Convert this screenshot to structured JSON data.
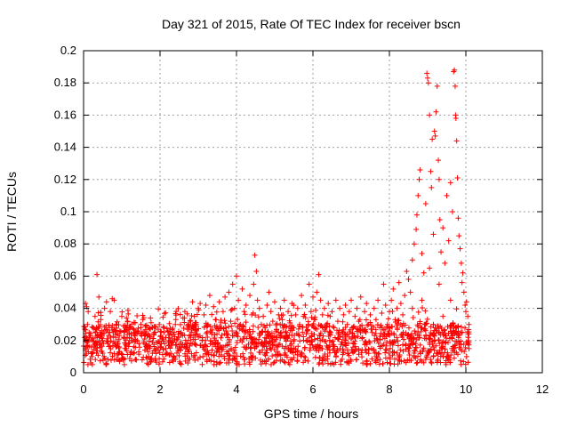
{
  "chart_data": {
    "type": "scatter",
    "title": "Day 321 of 2015, Rate Of TEC Index for receiver bscn",
    "xlabel": "GPS time / hours",
    "ylabel": "ROTI / TECUs",
    "xlim": [
      0,
      12
    ],
    "ylim": [
      0,
      0.2
    ],
    "xticks": [
      0,
      2,
      4,
      6,
      8,
      10,
      12
    ],
    "xtick_labels": [
      "0",
      "2",
      "4",
      "6",
      "8",
      "10",
      "12"
    ],
    "yticks": [
      0,
      0.02,
      0.04,
      0.06,
      0.08,
      0.1,
      0.12,
      0.14,
      0.16,
      0.18,
      0.2
    ],
    "ytick_labels": [
      "0",
      "0.02",
      "0.04",
      "0.06",
      "0.08",
      "0.1",
      "0.12",
      "0.14",
      "0.16",
      "0.18",
      "0.2"
    ],
    "grid": true,
    "marker": "plus",
    "color": "#ff0000",
    "series": [
      {
        "name": "ROTI",
        "points": [
          [
            0.05,
            0.043
          ],
          [
            0.08,
            0.041
          ],
          [
            0.12,
            0.038
          ],
          [
            0.1,
            0.03
          ],
          [
            0.15,
            0.022
          ],
          [
            0.05,
            0.015
          ],
          [
            0.2,
            0.012
          ],
          [
            0.25,
            0.028
          ],
          [
            0.3,
            0.035
          ],
          [
            0.35,
            0.061
          ],
          [
            0.4,
            0.047
          ],
          [
            0.45,
            0.033
          ],
          [
            0.5,
            0.02
          ],
          [
            0.55,
            0.04
          ],
          [
            0.6,
            0.044
          ],
          [
            0.65,
            0.025
          ],
          [
            0.7,
            0.038
          ],
          [
            0.75,
            0.046
          ],
          [
            0.8,
            0.045
          ],
          [
            0.85,
            0.03
          ],
          [
            0.9,
            0.018
          ],
          [
            0.95,
            0.026
          ],
          [
            1.0,
            0.035
          ],
          [
            1.05,
            0.022
          ],
          [
            1.1,
            0.015
          ],
          [
            1.15,
            0.032
          ],
          [
            1.2,
            0.028
          ],
          [
            1.25,
            0.02
          ],
          [
            1.3,
            0.012
          ],
          [
            1.35,
            0.031
          ],
          [
            1.4,
            0.024
          ],
          [
            1.45,
            0.018
          ],
          [
            1.5,
            0.03
          ],
          [
            1.55,
            0.033
          ],
          [
            1.6,
            0.021
          ],
          [
            1.65,
            0.016
          ],
          [
            1.7,
            0.028
          ],
          [
            1.75,
            0.034
          ],
          [
            1.8,
            0.019
          ],
          [
            1.85,
            0.025
          ],
          [
            1.9,
            0.012
          ],
          [
            1.95,
            0.027
          ],
          [
            2.0,
            0.018
          ],
          [
            2.05,
            0.022
          ],
          [
            2.1,
            0.028
          ],
          [
            2.15,
            0.015
          ],
          [
            2.2,
            0.026
          ],
          [
            2.25,
            0.011
          ],
          [
            2.3,
            0.024
          ],
          [
            2.35,
            0.019
          ],
          [
            2.4,
            0.03
          ],
          [
            2.45,
            0.021
          ],
          [
            2.5,
            0.016
          ],
          [
            2.55,
            0.025
          ],
          [
            2.6,
            0.034
          ],
          [
            2.65,
            0.038
          ],
          [
            2.7,
            0.018
          ],
          [
            2.75,
            0.03
          ],
          [
            2.8,
            0.022
          ],
          [
            2.85,
            0.044
          ],
          [
            2.9,
            0.035
          ],
          [
            2.95,
            0.026
          ],
          [
            3.0,
            0.04
          ],
          [
            3.05,
            0.043
          ],
          [
            3.1,
            0.02
          ],
          [
            3.15,
            0.036
          ],
          [
            3.2,
            0.042
          ],
          [
            3.25,
            0.03
          ],
          [
            3.3,
            0.048
          ],
          [
            3.35,
            0.025
          ],
          [
            3.4,
            0.041
          ],
          [
            3.45,
            0.033
          ],
          [
            3.5,
            0.018
          ],
          [
            3.55,
            0.044
          ],
          [
            3.6,
            0.028
          ],
          [
            3.65,
            0.038
          ],
          [
            3.7,
            0.047
          ],
          [
            3.75,
            0.024
          ],
          [
            3.8,
            0.05
          ],
          [
            3.85,
            0.032
          ],
          [
            3.9,
            0.055
          ],
          [
            3.95,
            0.04
          ],
          [
            4.0,
            0.06
          ],
          [
            4.05,
            0.045
          ],
          [
            4.1,
            0.03
          ],
          [
            4.15,
            0.052
          ],
          [
            4.2,
            0.038
          ],
          [
            4.25,
            0.042
          ],
          [
            4.3,
            0.025
          ],
          [
            4.35,
            0.048
          ],
          [
            4.4,
            0.036
          ],
          [
            4.45,
            0.055
          ],
          [
            4.48,
            0.073
          ],
          [
            4.52,
            0.063
          ],
          [
            4.55,
            0.045
          ],
          [
            4.6,
            0.04
          ],
          [
            4.65,
            0.03
          ],
          [
            4.7,
            0.035
          ],
          [
            4.75,
            0.028
          ],
          [
            4.8,
            0.042
          ],
          [
            4.85,
            0.05
          ],
          [
            4.9,
            0.038
          ],
          [
            4.95,
            0.032
          ],
          [
            5.0,
            0.044
          ],
          [
            5.05,
            0.027
          ],
          [
            5.1,
            0.036
          ],
          [
            5.15,
            0.04
          ],
          [
            5.2,
            0.033
          ],
          [
            5.25,
            0.045
          ],
          [
            5.3,
            0.025
          ],
          [
            5.35,
            0.038
          ],
          [
            5.4,
            0.031
          ],
          [
            5.45,
            0.043
          ],
          [
            5.5,
            0.028
          ],
          [
            5.55,
            0.036
          ],
          [
            5.6,
            0.04
          ],
          [
            5.65,
            0.03
          ],
          [
            5.7,
            0.048
          ],
          [
            5.75,
            0.035
          ],
          [
            5.8,
            0.042
          ],
          [
            5.85,
            0.026
          ],
          [
            5.9,
            0.055
          ],
          [
            5.95,
            0.038
          ],
          [
            6.0,
            0.047
          ],
          [
            6.05,
            0.033
          ],
          [
            6.1,
            0.05
          ],
          [
            6.15,
            0.061
          ],
          [
            6.2,
            0.045
          ],
          [
            6.25,
            0.036
          ],
          [
            6.3,
            0.04
          ],
          [
            6.35,
            0.03
          ],
          [
            6.4,
            0.043
          ],
          [
            6.45,
            0.035
          ],
          [
            6.5,
            0.038
          ],
          [
            6.55,
            0.028
          ],
          [
            6.6,
            0.045
          ],
          [
            6.65,
            0.032
          ],
          [
            6.7,
            0.04
          ],
          [
            6.75,
            0.025
          ],
          [
            6.8,
            0.036
          ],
          [
            6.85,
            0.042
          ],
          [
            6.9,
            0.03
          ],
          [
            6.95,
            0.038
          ],
          [
            7.0,
            0.045
          ],
          [
            7.05,
            0.028
          ],
          [
            7.1,
            0.035
          ],
          [
            7.15,
            0.04
          ],
          [
            7.2,
            0.032
          ],
          [
            7.25,
            0.047
          ],
          [
            7.3,
            0.026
          ],
          [
            7.35,
            0.038
          ],
          [
            7.4,
            0.043
          ],
          [
            7.45,
            0.03
          ],
          [
            7.5,
            0.036
          ],
          [
            7.55,
            0.025
          ],
          [
            7.6,
            0.04
          ],
          [
            7.65,
            0.033
          ],
          [
            7.7,
            0.045
          ],
          [
            7.75,
            0.028
          ],
          [
            7.8,
            0.037
          ],
          [
            7.85,
            0.055
          ],
          [
            7.9,
            0.042
          ],
          [
            7.95,
            0.03
          ],
          [
            8.0,
            0.038
          ],
          [
            8.05,
            0.045
          ],
          [
            8.1,
            0.052
          ],
          [
            8.15,
            0.033
          ],
          [
            8.2,
            0.04
          ],
          [
            8.25,
            0.056
          ],
          [
            8.3,
            0.043
          ],
          [
            8.35,
            0.036
          ],
          [
            8.4,
            0.048
          ],
          [
            8.45,
            0.063
          ],
          [
            8.5,
            0.058
          ],
          [
            8.55,
            0.05
          ],
          [
            8.6,
            0.07
          ],
          [
            8.65,
            0.08
          ],
          [
            8.7,
            0.089
          ],
          [
            8.72,
            0.098
          ],
          [
            8.75,
            0.11
          ],
          [
            8.78,
            0.12
          ],
          [
            8.8,
            0.126
          ],
          [
            8.85,
            0.074
          ],
          [
            8.9,
            0.062
          ],
          [
            8.95,
            0.105
          ],
          [
            8.98,
            0.186
          ],
          [
            9.0,
            0.183
          ],
          [
            9.02,
            0.18
          ],
          [
            9.05,
            0.16
          ],
          [
            9.08,
            0.125
          ],
          [
            9.1,
            0.115
          ],
          [
            9.12,
            0.145
          ],
          [
            9.15,
            0.086
          ],
          [
            9.18,
            0.15
          ],
          [
            9.2,
            0.147
          ],
          [
            9.22,
            0.162
          ],
          [
            9.25,
            0.178
          ],
          [
            9.28,
            0.132
          ],
          [
            9.3,
            0.12
          ],
          [
            9.32,
            0.095
          ],
          [
            9.35,
            0.075
          ],
          [
            9.4,
            0.09
          ],
          [
            9.45,
            0.068
          ],
          [
            9.5,
            0.11
          ],
          [
            9.55,
            0.082
          ],
          [
            9.6,
            0.118
          ],
          [
            9.65,
            0.1
          ],
          [
            9.68,
            0.187
          ],
          [
            9.7,
            0.188
          ],
          [
            9.72,
            0.178
          ],
          [
            9.73,
            0.16
          ],
          [
            9.74,
            0.158
          ],
          [
            9.76,
            0.144
          ],
          [
            9.78,
            0.121
          ],
          [
            9.8,
            0.096
          ],
          [
            9.82,
            0.085
          ],
          [
            9.85,
            0.077
          ],
          [
            9.88,
            0.068
          ],
          [
            9.9,
            0.056
          ],
          [
            9.92,
            0.062
          ],
          [
            9.95,
            0.05
          ],
          [
            9.98,
            0.042
          ],
          [
            10.0,
            0.038
          ],
          [
            10.02,
            0.044
          ],
          [
            10.05,
            0.035
          ],
          [
            10.08,
            0.03
          ],
          [
            10.05,
            0.018
          ],
          [
            10.02,
            0.01
          ],
          [
            10.08,
            0.015
          ],
          [
            9.9,
            0.025
          ],
          [
            9.6,
            0.045
          ],
          [
            9.3,
            0.055
          ],
          [
            9.05,
            0.065
          ],
          [
            8.85,
            0.045
          ],
          [
            8.6,
            0.04
          ],
          [
            9.4,
            0.035
          ],
          [
            9.15,
            0.03
          ],
          [
            9.75,
            0.028
          ]
        ]
      }
    ],
    "background_band": {
      "x_range": [
        0,
        10.1
      ],
      "y_range": [
        0.005,
        0.03
      ],
      "density": "dense"
    }
  }
}
